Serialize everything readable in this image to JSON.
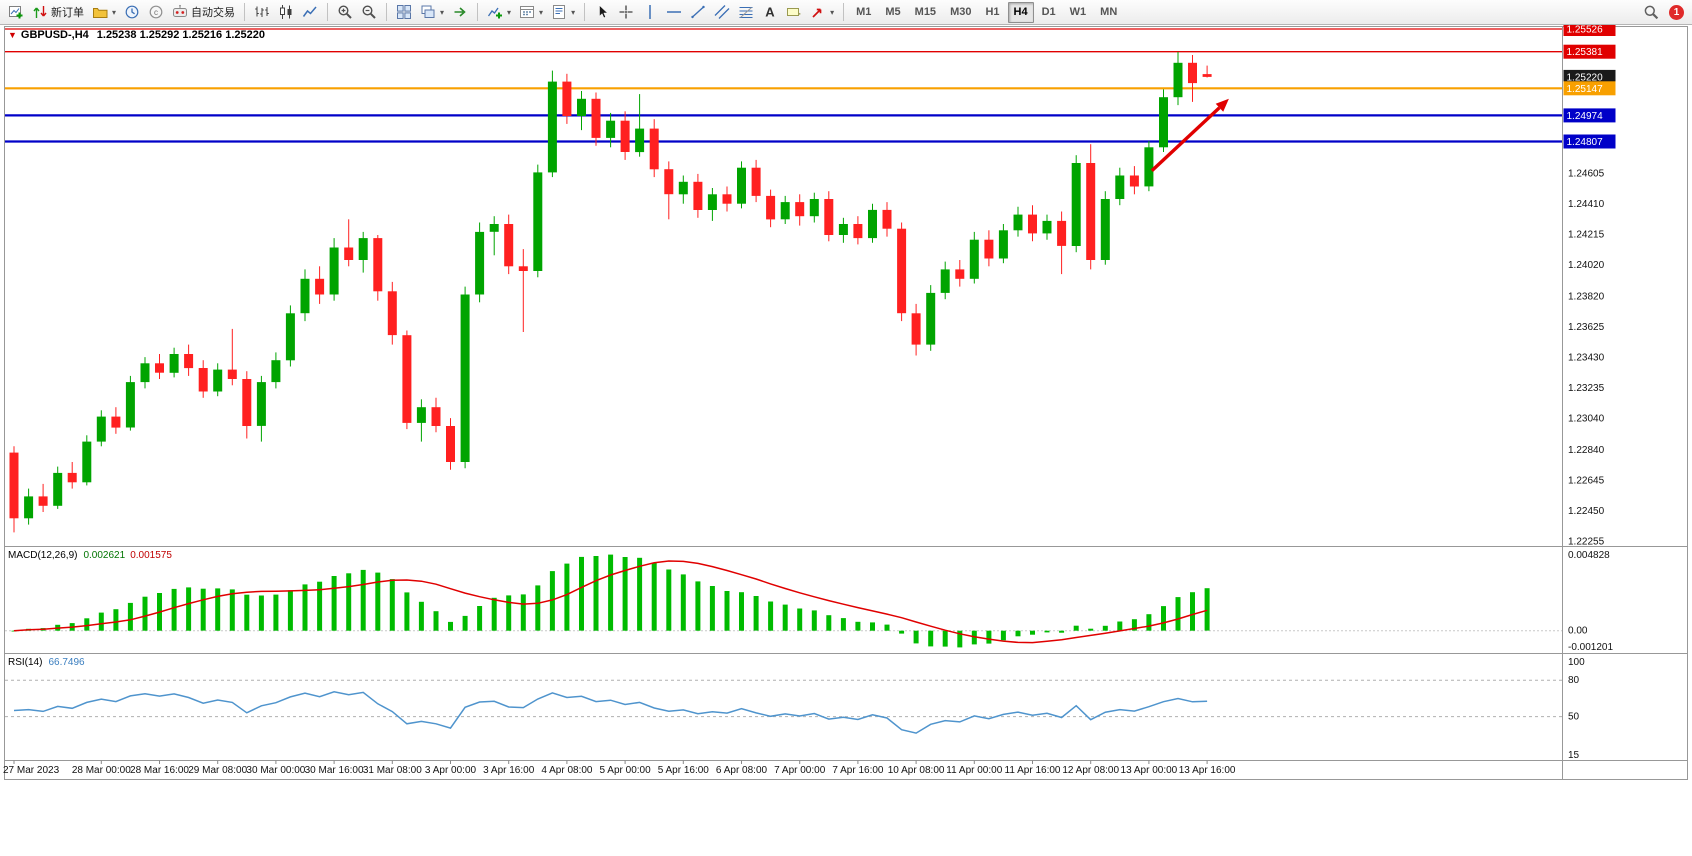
{
  "toolbar": {
    "groups": [
      {
        "name": "file",
        "items": [
          {
            "name": "new-chart"
          },
          {
            "name": "new-order",
            "label": "新订单"
          },
          {
            "name": "chart-profiles",
            "dropdown": true
          },
          {
            "name": "market-watch"
          },
          {
            "name": "data-window"
          },
          {
            "name": "autotrading",
            "label": "自动交易"
          }
        ]
      },
      {
        "name": "chart-type",
        "items": [
          {
            "name": "bar-chart"
          },
          {
            "name": "candlestick-chart"
          },
          {
            "name": "line-chart"
          }
        ]
      },
      {
        "name": "zoom",
        "items": [
          {
            "name": "zoom-in"
          },
          {
            "name": "zoom-out"
          }
        ]
      },
      {
        "name": "windows",
        "items": [
          {
            "name": "tile-windows"
          },
          {
            "name": "cascade-windows",
            "dropdown": true
          },
          {
            "name": "chart-shift"
          }
        ]
      },
      {
        "name": "insert",
        "items": [
          {
            "name": "indicators",
            "dropdown": true
          },
          {
            "name": "periods",
            "dropdown": true
          },
          {
            "name": "templates",
            "dropdown": true
          }
        ]
      },
      {
        "name": "tools",
        "items": [
          {
            "name": "cursor"
          },
          {
            "name": "crosshair"
          },
          {
            "name": "vline"
          },
          {
            "name": "hline"
          },
          {
            "name": "trendline"
          },
          {
            "name": "channel"
          },
          {
            "name": "fibonacci"
          },
          {
            "name": "text"
          },
          {
            "name": "label"
          },
          {
            "name": "arrows-tool",
            "dropdown": true
          }
        ]
      }
    ],
    "timeframes": [
      "M1",
      "M5",
      "M15",
      "M30",
      "H1",
      "H4",
      "D1",
      "W1",
      "MN"
    ],
    "active_timeframe": "H4",
    "notification_count": "1"
  },
  "chart": {
    "symbol_period": "GBPUSD-,H4",
    "ohlc_line": "1.25238 1.25292 1.25216 1.25220"
  },
  "indicators": {
    "macd": {
      "label": "MACD(12,26,9)",
      "value_main": "0.002621",
      "value_signal": "0.001575",
      "scale_max": "0.004828",
      "scale_zero": "0.00",
      "scale_min": "-0.001201"
    },
    "rsi": {
      "label": "RSI(14)",
      "value": "66.7496",
      "scale_top": "100",
      "scale_80": "80",
      "scale_50": "50",
      "scale_bottom": "15"
    }
  },
  "chart_data": [
    {
      "type": "candlestick",
      "symbol": "GBPUSD",
      "timeframe": "H4",
      "ylim": [
        1.22255,
        1.25526
      ],
      "colors": {
        "bull": "#00A400",
        "bear": "#FF2020"
      },
      "time_labels": [
        {
          "label": "27 Mar 2023",
          "index": 0
        },
        {
          "label": "28 Mar 00:00",
          "index": 6
        },
        {
          "label": "28 Mar 16:00",
          "index": 10
        },
        {
          "label": "29 Mar 08:00",
          "index": 14
        },
        {
          "label": "30 Mar 00:00",
          "index": 18
        },
        {
          "label": "30 Mar 16:00",
          "index": 22
        },
        {
          "label": "31 Mar 08:00",
          "index": 26
        },
        {
          "label": "3 Apr 00:00",
          "index": 30
        },
        {
          "label": "3 Apr 16:00",
          "index": 34
        },
        {
          "label": "4 Apr 08:00",
          "index": 38
        },
        {
          "label": "5 Apr 00:00",
          "index": 42
        },
        {
          "label": "5 Apr 16:00",
          "index": 46
        },
        {
          "label": "6 Apr 08:00",
          "index": 50
        },
        {
          "label": "7 Apr 00:00",
          "index": 54
        },
        {
          "label": "7 Apr 16:00",
          "index": 58
        },
        {
          "label": "10 Apr 08:00",
          "index": 62
        },
        {
          "label": "11 Apr 00:00",
          "index": 66
        },
        {
          "label": "11 Apr 16:00",
          "index": 70
        },
        {
          "label": "12 Apr 08:00",
          "index": 74
        },
        {
          "label": "13 Apr 00:00",
          "index": 78
        },
        {
          "label": "13 Apr 16:00",
          "index": 82
        }
      ],
      "price_grid_labels": [
        "1.24605",
        "1.24410",
        "1.24215",
        "1.24020",
        "1.23820",
        "1.23625",
        "1.23430",
        "1.23235",
        "1.23040",
        "1.22840",
        "1.22645",
        "1.22450",
        "1.22255"
      ],
      "axis_marked_labels": [
        {
          "text": "1.25526",
          "bg": "#E00000",
          "name": "price-label-resistance-1"
        },
        {
          "text": "1.25381",
          "bg": "#E00000",
          "name": "price-label-resistance-2"
        },
        {
          "text": "1.25220",
          "bg": "#1a1a1a",
          "name": "price-label-current"
        },
        {
          "text": "1.25147",
          "bg": "#F8A000",
          "name": "price-label-pivot"
        },
        {
          "text": "1.24974",
          "bg": "#0000C8",
          "name": "price-label-support-1"
        },
        {
          "text": "1.24807",
          "bg": "#0000C8",
          "name": "price-label-support-2"
        }
      ],
      "hlines": [
        {
          "price": 1.25526,
          "color": "#E00000",
          "width": 1.3,
          "name": "resistance-line-1"
        },
        {
          "price": 1.25381,
          "color": "#E00000",
          "width": 1.3,
          "name": "resistance-line-2"
        },
        {
          "price": 1.25147,
          "color": "#F8A000",
          "width": 2.2,
          "name": "pivot-line"
        },
        {
          "price": 1.24974,
          "color": "#0000C8",
          "width": 2.2,
          "name": "support-line-1"
        },
        {
          "price": 1.24807,
          "color": "#0000C8",
          "width": 2.2,
          "name": "support-line-2"
        }
      ],
      "trend_arrow": {
        "from_index": 78.2,
        "from_price": 1.2462,
        "to_index": 83.5,
        "to_price": 1.2508,
        "color": "#E00000"
      },
      "open": [
        1.2282,
        1.224,
        1.2254,
        1.2248,
        1.2269,
        1.2263,
        1.2289,
        1.2305,
        1.2298,
        1.2327,
        1.2339,
        1.2333,
        1.2345,
        1.2336,
        1.2321,
        1.2335,
        1.2329,
        1.2299,
        1.2327,
        1.2341,
        1.2371,
        1.2393,
        1.2383,
        1.2413,
        1.2405,
        1.2419,
        1.2385,
        1.2357,
        1.2301,
        1.2311,
        1.2299,
        1.2276,
        1.2383,
        1.2423,
        1.2428,
        1.2401,
        1.2398,
        1.2461,
        1.2519,
        1.2497,
        1.2508,
        1.2483,
        1.2494,
        1.2474,
        1.2489,
        1.2463,
        1.2447,
        1.2455,
        1.2437,
        1.2447,
        1.2441,
        1.2464,
        1.2446,
        1.2431,
        1.2442,
        1.2433,
        1.2444,
        1.2421,
        1.2428,
        1.2419,
        1.2437,
        1.2425,
        1.2371,
        1.2351,
        1.2384,
        1.2399,
        1.2393,
        1.2418,
        1.2406,
        1.2424,
        1.2434,
        1.2422,
        1.243,
        1.2414,
        1.2467,
        1.2405,
        1.2444,
        1.2459,
        1.2452,
        1.2477,
        1.2509,
        1.2531,
        1.25238
      ],
      "high": [
        1.2286,
        1.2259,
        1.2262,
        1.2273,
        1.2276,
        1.2293,
        1.2309,
        1.2311,
        1.2331,
        1.2343,
        1.2345,
        1.2349,
        1.2351,
        1.2341,
        1.2339,
        1.2361,
        1.2334,
        1.2331,
        1.2346,
        1.2376,
        1.2399,
        1.2401,
        1.2419,
        1.2431,
        1.2423,
        1.2421,
        1.2391,
        1.236,
        1.2316,
        1.2317,
        1.2304,
        1.2388,
        1.2429,
        1.2433,
        1.2434,
        1.2412,
        1.2466,
        1.2526,
        1.2524,
        1.2513,
        1.2512,
        1.2499,
        1.25,
        1.2511,
        1.2495,
        1.2468,
        1.2459,
        1.246,
        1.2451,
        1.2452,
        1.2468,
        1.2469,
        1.245,
        1.2446,
        1.2447,
        1.2448,
        1.2449,
        1.2432,
        1.2433,
        1.2441,
        1.2442,
        1.2429,
        1.2377,
        1.2389,
        1.2404,
        1.2405,
        1.2423,
        1.2424,
        1.2428,
        1.2439,
        1.244,
        1.2434,
        1.2436,
        1.2472,
        1.2479,
        1.2449,
        1.2464,
        1.2465,
        1.2481,
        1.2514,
        1.2538,
        1.2536,
        1.25292
      ],
      "low": [
        1.2231,
        1.2236,
        1.2244,
        1.2246,
        1.2259,
        1.2261,
        1.2286,
        1.2294,
        1.2296,
        1.2323,
        1.2329,
        1.233,
        1.2331,
        1.2317,
        1.2318,
        1.2325,
        1.2291,
        1.2289,
        1.2323,
        1.2337,
        1.2366,
        1.2377,
        1.2379,
        1.2401,
        1.2397,
        1.2379,
        1.2351,
        1.2297,
        1.2289,
        1.2295,
        1.2271,
        1.2272,
        1.2378,
        1.2408,
        1.2396,
        1.2359,
        1.2394,
        1.2458,
        1.2492,
        1.2488,
        1.2478,
        1.2477,
        1.2469,
        1.2471,
        1.2458,
        1.2431,
        1.2441,
        1.2432,
        1.243,
        1.2436,
        1.2438,
        1.2442,
        1.2426,
        1.2428,
        1.2427,
        1.2429,
        1.2417,
        1.2416,
        1.2415,
        1.2416,
        1.242,
        1.2366,
        1.2344,
        1.2347,
        1.238,
        1.2388,
        1.239,
        1.2401,
        1.2403,
        1.242,
        1.2417,
        1.2418,
        1.2396,
        1.241,
        1.2399,
        1.2402,
        1.244,
        1.2447,
        1.2449,
        1.2474,
        1.2504,
        1.2506,
        1.25216
      ],
      "close": [
        1.224,
        1.2254,
        1.2248,
        1.2269,
        1.2263,
        1.2289,
        1.2305,
        1.2298,
        1.2327,
        1.2339,
        1.2333,
        1.2345,
        1.2336,
        1.2321,
        1.2335,
        1.2329,
        1.2299,
        1.2327,
        1.2341,
        1.2371,
        1.2393,
        1.2383,
        1.2413,
        1.2405,
        1.2419,
        1.2385,
        1.2357,
        1.2301,
        1.2311,
        1.2299,
        1.2276,
        1.2383,
        1.2423,
        1.2428,
        1.2401,
        1.2398,
        1.2461,
        1.2519,
        1.2497,
        1.2508,
        1.2483,
        1.2494,
        1.2474,
        1.2489,
        1.2463,
        1.2447,
        1.2455,
        1.2437,
        1.2447,
        1.2441,
        1.2464,
        1.2446,
        1.2431,
        1.2442,
        1.2433,
        1.2444,
        1.2421,
        1.2428,
        1.2419,
        1.2437,
        1.2425,
        1.2371,
        1.2351,
        1.2384,
        1.2399,
        1.2393,
        1.2418,
        1.2406,
        1.2424,
        1.2434,
        1.2422,
        1.243,
        1.2414,
        1.2467,
        1.2405,
        1.2444,
        1.2459,
        1.2452,
        1.2477,
        1.2509,
        1.2531,
        1.2518,
        1.2522
      ]
    },
    {
      "type": "macd-histogram",
      "params": [
        12,
        26,
        9
      ],
      "ylim": [
        -0.001201,
        0.004828
      ],
      "colors": {
        "histogram": "#00BB00",
        "signal": "#E00000"
      },
      "current_main": 0.002621,
      "current_signal": 0.001575,
      "derived_from": "close"
    },
    {
      "type": "rsi-line",
      "params": [
        14
      ],
      "ylim": [
        15,
        100
      ],
      "levels": [
        80,
        50
      ],
      "color": "#4F94CD",
      "current_value": 66.7496,
      "derived_from": "close"
    }
  ]
}
